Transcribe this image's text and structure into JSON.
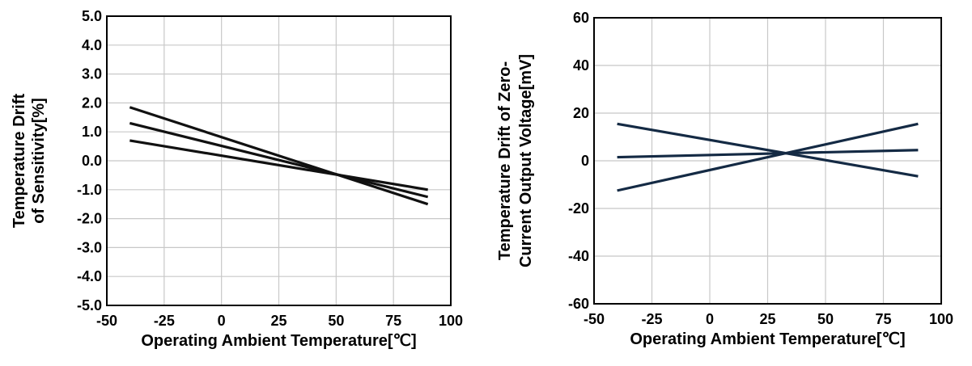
{
  "chart_data": [
    {
      "type": "line",
      "title": "",
      "xlabel": "Operating Ambient Temperature[℃]",
      "ylabel_lines": [
        "Temperature Drift",
        "of Sensitivity[%]"
      ],
      "xlim": [
        -50,
        100
      ],
      "ylim": [
        -5.0,
        5.0
      ],
      "xticks": [
        -50,
        -25,
        0,
        25,
        50,
        75,
        100
      ],
      "yticks": [
        5.0,
        4.0,
        3.0,
        2.0,
        1.0,
        0.0,
        -1.0,
        -2.0,
        -3.0,
        -4.0,
        -5.0
      ],
      "xtick_labels": [
        "-50",
        "-25",
        "0",
        "25",
        "50",
        "75",
        "100"
      ],
      "ytick_labels": [
        "5.0",
        "4.0",
        "3.0",
        "2.0",
        "1.0",
        "0.0",
        "-1.0",
        "-2.0",
        "-3.0",
        "-4.0",
        "-5.0"
      ],
      "grid": true,
      "line_color": "#111111",
      "series": [
        {
          "x": [
            -40,
            90
          ],
          "y": [
            1.85,
            -1.5
          ]
        },
        {
          "x": [
            -40,
            90
          ],
          "y": [
            1.3,
            -1.25
          ]
        },
        {
          "x": [
            -40,
            90
          ],
          "y": [
            0.7,
            -1.0
          ]
        }
      ]
    },
    {
      "type": "line",
      "title": "",
      "xlabel": "Operating Ambient Temperature[℃]",
      "ylabel_lines": [
        "Temperature Drift of Zero-",
        "Current Output Voltage[mV]"
      ],
      "xlim": [
        -50,
        100
      ],
      "ylim": [
        -60,
        60
      ],
      "xticks": [
        -50,
        -25,
        0,
        25,
        50,
        75,
        100
      ],
      "yticks": [
        60,
        40,
        20,
        0,
        -20,
        -40,
        -60
      ],
      "xtick_labels": [
        "-50",
        "-25",
        "0",
        "25",
        "50",
        "75",
        "100"
      ],
      "ytick_labels": [
        "60",
        "40",
        "20",
        "0",
        "-20",
        "-40",
        "-60"
      ],
      "grid": true,
      "line_color": "#142a44",
      "series": [
        {
          "x": [
            -40,
            90
          ],
          "y": [
            15.5,
            -6.5
          ]
        },
        {
          "x": [
            -40,
            90
          ],
          "y": [
            1.5,
            4.5
          ]
        },
        {
          "x": [
            -40,
            90
          ],
          "y": [
            -12.5,
            15.5
          ]
        }
      ]
    }
  ]
}
